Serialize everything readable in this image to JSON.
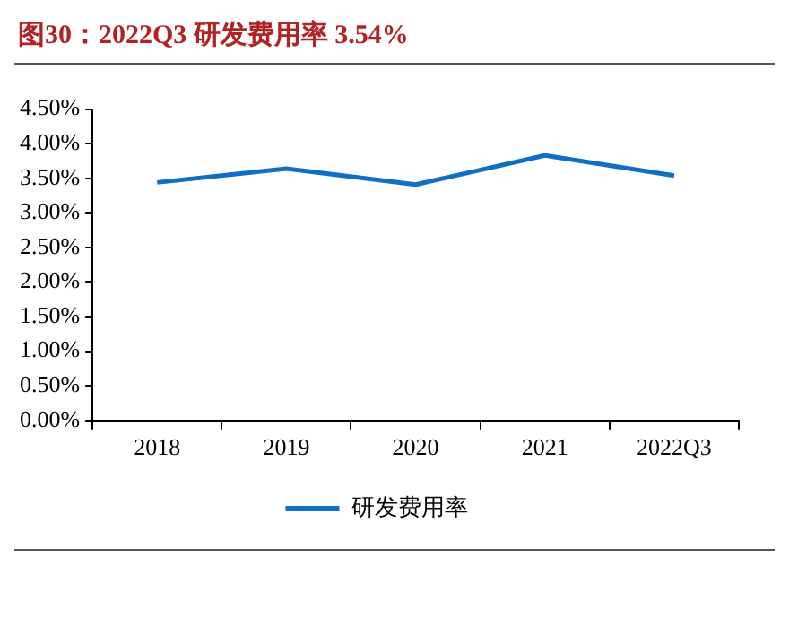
{
  "chart_data": {
    "type": "line",
    "title": "图30：2022Q3 研发费用率 3.54%",
    "categories": [
      "2018",
      "2019",
      "2020",
      "2021",
      "2022Q3"
    ],
    "series": [
      {
        "name": "研发费用率",
        "color": "#0f6fc6",
        "values": [
          3.44,
          3.64,
          3.41,
          3.83,
          3.54
        ]
      }
    ],
    "ylim": [
      0,
      4.5
    ],
    "yticks": [
      {
        "value": 0,
        "label": "0.00%"
      },
      {
        "value": 0.5,
        "label": "0.50%"
      },
      {
        "value": 1,
        "label": "1.00%"
      },
      {
        "value": 1.5,
        "label": "1.50%"
      },
      {
        "value": 2,
        "label": "2.00%"
      },
      {
        "value": 2.5,
        "label": "2.50%"
      },
      {
        "value": 3,
        "label": "3.00%"
      },
      {
        "value": 3.5,
        "label": "3.50%"
      },
      {
        "value": 4,
        "label": "4.00%"
      },
      {
        "value": 4.5,
        "label": "4.50%"
      }
    ],
    "grid": false,
    "legend": "bottom",
    "marker": "none",
    "line_style": "solid"
  }
}
